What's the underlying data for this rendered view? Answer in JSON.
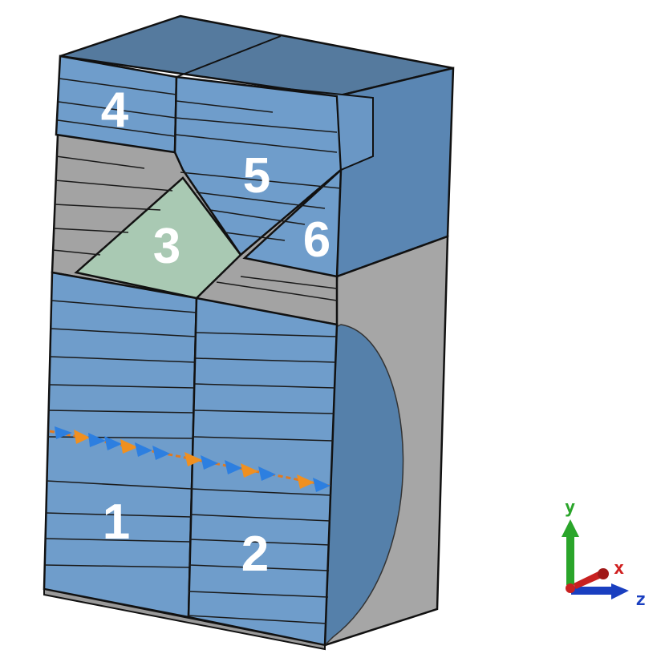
{
  "regions": [
    {
      "id": "1",
      "label": "1"
    },
    {
      "id": "2",
      "label": "2"
    },
    {
      "id": "3",
      "label": "3"
    },
    {
      "id": "4",
      "label": "4"
    },
    {
      "id": "5",
      "label": "5"
    },
    {
      "id": "6",
      "label": "6"
    }
  ],
  "axes": {
    "y": "y",
    "x": "x",
    "z": "z"
  },
  "colors": {
    "block_blue": "#6f9dcb",
    "block_blue_dark": "#5a86b3",
    "top_face": "#557a9e",
    "gray_face": "#a3a3a3",
    "region3_green": "#a9c9b3",
    "edge": "#111111",
    "arrow_blue": "#2d7fe0",
    "arrow_orange": "#f09020",
    "axis_y": "#2aa52a",
    "axis_x": "#d02020",
    "axis_z": "#1a3fc0"
  }
}
